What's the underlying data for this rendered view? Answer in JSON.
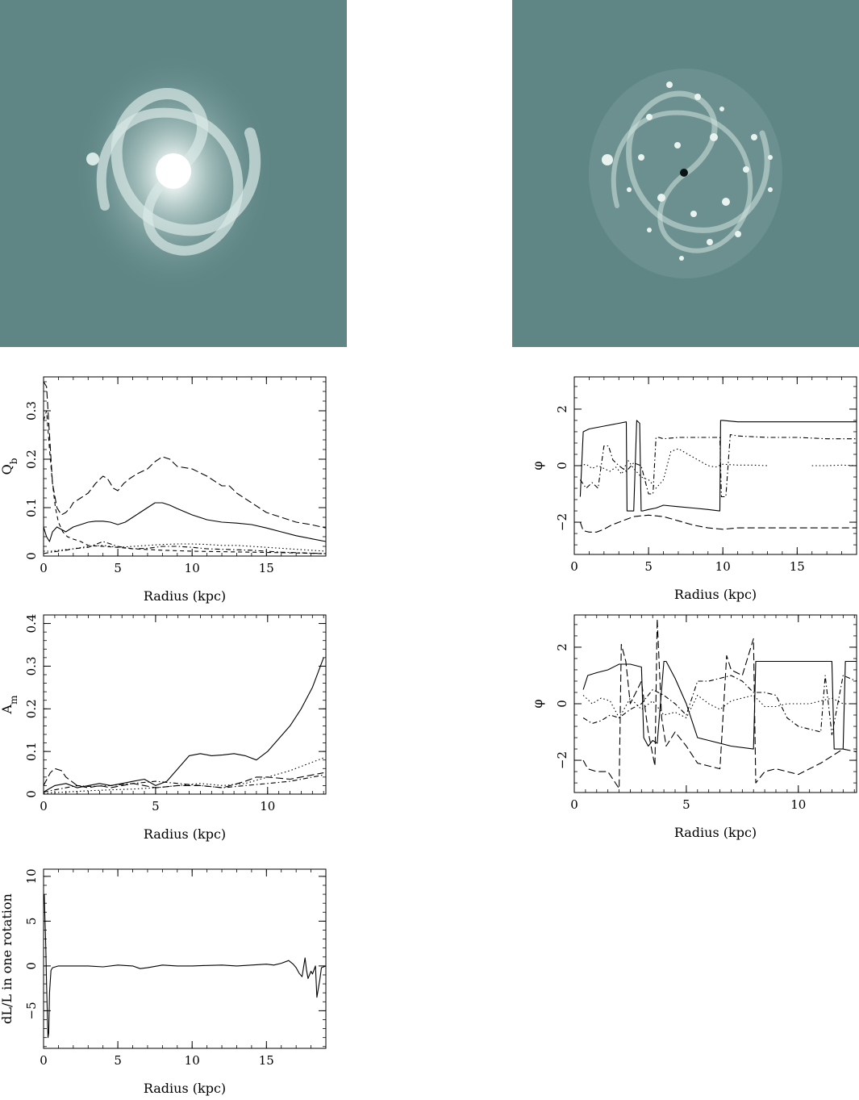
{
  "images": {
    "left": {
      "name": "galaxy-image-left"
    },
    "right": {
      "name": "galaxy-image-right"
    }
  },
  "chart_data": [
    {
      "id": "qb",
      "type": "line",
      "xlabel": "Radius (kpc)",
      "ylabel": "Q",
      "ylabel_sub": "b",
      "xlim": [
        0,
        19
      ],
      "ylim": [
        0,
        0.37
      ],
      "xticks": [
        0,
        5,
        10,
        15
      ],
      "yticks": [
        0,
        0.1,
        0.2,
        0.3
      ],
      "series": [
        {
          "style": "long-dash",
          "x": [
            0,
            0.2,
            0.4,
            0.6,
            0.9,
            1.2,
            1.5,
            1.8,
            2,
            2.5,
            3,
            3.5,
            4,
            4.3,
            4.7,
            5,
            5.4,
            5.8,
            6.3,
            7,
            7.5,
            8,
            8.5,
            9,
            10,
            11,
            12,
            12.5,
            13,
            14,
            15,
            16,
            17,
            18,
            19
          ],
          "y": [
            0.36,
            0.35,
            0.25,
            0.15,
            0.1,
            0.085,
            0.09,
            0.1,
            0.11,
            0.12,
            0.13,
            0.15,
            0.165,
            0.16,
            0.14,
            0.135,
            0.15,
            0.16,
            0.17,
            0.18,
            0.195,
            0.205,
            0.2,
            0.185,
            0.18,
            0.165,
            0.145,
            0.145,
            0.13,
            0.11,
            0.09,
            0.08,
            0.07,
            0.065,
            0.058
          ]
        },
        {
          "style": "solid",
          "x": [
            0,
            0.2,
            0.4,
            0.6,
            0.9,
            1.2,
            1.5,
            2,
            2.5,
            3,
            3.5,
            4,
            4.5,
            5,
            5.5,
            6,
            6.5,
            7,
            7.5,
            8,
            8.5,
            9,
            10,
            11,
            12,
            13,
            14,
            15,
            16,
            17,
            18,
            19
          ],
          "y": [
            0.06,
            0.04,
            0.03,
            0.05,
            0.06,
            0.055,
            0.05,
            0.06,
            0.065,
            0.07,
            0.072,
            0.072,
            0.07,
            0.065,
            0.07,
            0.08,
            0.09,
            0.1,
            0.11,
            0.11,
            0.105,
            0.098,
            0.085,
            0.075,
            0.07,
            0.068,
            0.065,
            0.058,
            0.05,
            0.042,
            0.036,
            0.03
          ]
        },
        {
          "style": "dash",
          "x": [
            0,
            0.2,
            0.4,
            0.6,
            0.8,
            1,
            1.3,
            1.6,
            2,
            2.5,
            3,
            4,
            5,
            6,
            8,
            10,
            12,
            14,
            16,
            19
          ],
          "y": [
            0.28,
            0.3,
            0.22,
            0.15,
            0.1,
            0.07,
            0.05,
            0.04,
            0.035,
            0.03,
            0.022,
            0.02,
            0.018,
            0.015,
            0.012,
            0.01,
            0.009,
            0.008,
            0.007,
            0.005
          ]
        },
        {
          "style": "dot",
          "x": [
            0,
            0.5,
            1,
            2,
            3,
            4,
            5,
            6,
            7,
            8,
            9,
            10,
            11,
            12,
            13,
            14,
            15,
            16,
            17,
            18,
            19
          ],
          "y": [
            0.01,
            0.01,
            0.012,
            0.015,
            0.02,
            0.022,
            0.018,
            0.02,
            0.022,
            0.024,
            0.025,
            0.025,
            0.024,
            0.022,
            0.022,
            0.02,
            0.018,
            0.016,
            0.014,
            0.012,
            0.01
          ]
        },
        {
          "style": "dash-dot",
          "x": [
            0,
            0.5,
            1,
            1.5,
            2,
            3,
            4,
            5,
            6,
            7,
            8,
            9,
            10,
            11,
            12,
            13,
            14,
            15,
            16,
            17,
            18,
            19
          ],
          "y": [
            0.005,
            0.008,
            0.01,
            0.012,
            0.015,
            0.018,
            0.03,
            0.02,
            0.015,
            0.016,
            0.02,
            0.02,
            0.018,
            0.015,
            0.014,
            0.013,
            0.012,
            0.01,
            0.008,
            0.007,
            0.006,
            0.005
          ]
        }
      ]
    },
    {
      "id": "phi-top",
      "type": "line",
      "xlabel": "Radius (kpc)",
      "ylabel": "φ",
      "xlim": [
        0,
        19
      ],
      "ylim": [
        -3.14,
        3.14
      ],
      "xticks": [
        0,
        5,
        10,
        15
      ],
      "yticks": [
        -2,
        0,
        2
      ],
      "series": [
        {
          "style": "solid",
          "x": [
            0.4,
            0.6,
            1,
            2,
            3,
            3.5,
            3.55,
            4,
            4.2,
            4.4,
            4.5,
            4.6,
            5,
            5.5,
            6,
            7,
            8,
            9,
            9.8,
            9.85,
            10,
            11,
            13,
            15,
            17,
            19
          ],
          "y": [
            -1.1,
            1.2,
            1.3,
            1.4,
            1.5,
            1.55,
            -1.6,
            -1.6,
            1.6,
            1.5,
            -1.6,
            -1.6,
            -1.55,
            -1.5,
            -1.4,
            -1.45,
            -1.5,
            -1.55,
            -1.6,
            1.6,
            1.6,
            1.55,
            1.55,
            1.55,
            1.55,
            1.55
          ]
        },
        {
          "style": "long-dash",
          "x": [
            0.4,
            0.6,
            1,
            1.5,
            2,
            2.5,
            3,
            4,
            5,
            6,
            7,
            8,
            9,
            10,
            11,
            13,
            15,
            17,
            19
          ],
          "y": [
            -2.0,
            -2.3,
            -2.35,
            -2.35,
            -2.25,
            -2.1,
            -2.0,
            -1.8,
            -1.75,
            -1.8,
            -1.95,
            -2.1,
            -2.2,
            -2.25,
            -2.2,
            -2.2,
            -2.2,
            -2.2,
            -2.2
          ]
        },
        {
          "style": "dash-dot",
          "x": [
            0.4,
            0.8,
            1.2,
            1.6,
            2,
            2.3,
            2.6,
            3,
            3.5,
            4,
            4.5,
            5,
            5.3,
            5.5,
            5.7,
            6,
            7,
            8,
            9,
            9.8,
            9.9,
            10.2,
            10.5,
            11,
            13,
            15,
            17,
            19
          ],
          "y": [
            -0.5,
            -0.8,
            -0.6,
            -0.8,
            0.7,
            0.7,
            0.2,
            0.0,
            -0.2,
            0.1,
            0.0,
            -1.0,
            -1.0,
            1.0,
            1.0,
            0.95,
            1.0,
            1.0,
            1.0,
            1.0,
            -1.1,
            -1.1,
            1.1,
            1.05,
            1.0,
            1.0,
            0.95,
            0.95
          ]
        },
        {
          "style": "dot",
          "x": [
            0.4,
            0.8,
            1.2,
            1.6,
            2,
            2.4,
            2.8,
            3.2,
            3.6,
            4,
            4.5,
            5,
            5.5,
            6,
            6.5,
            7,
            8,
            9,
            9.5,
            10,
            11,
            12,
            13,
            15,
            16,
            17,
            18,
            19
          ],
          "y": [
            0.0,
            0.05,
            -0.1,
            0.0,
            -0.1,
            -0.2,
            -0.05,
            -0.3,
            0.2,
            -0.1,
            -0.4,
            -0.5,
            -0.8,
            -0.5,
            0.5,
            0.6,
            0.3,
            0.0,
            -0.05,
            0.05,
            0.02,
            0.02,
            0.0,
            null,
            0.0,
            0.0,
            0.02,
            0.0
          ]
        }
      ]
    },
    {
      "id": "an",
      "type": "line",
      "xlabel": "Radius (kpc)",
      "ylabel": "A",
      "ylabel_sub": "m",
      "xlim": [
        0,
        12.6
      ],
      "ylim": [
        0,
        0.42
      ],
      "xticks": [
        0,
        5,
        10
      ],
      "yticks": [
        0,
        0.1,
        0.2,
        0.3,
        0.4
      ],
      "series": [
        {
          "style": "solid",
          "x": [
            0,
            0.5,
            1,
            1.5,
            2,
            2.5,
            3,
            3.5,
            4,
            4.5,
            5,
            5.5,
            6,
            6.5,
            7,
            7.5,
            8,
            8.5,
            9,
            9.5,
            10,
            10.5,
            11,
            11.5,
            12,
            12.5
          ],
          "y": [
            0.005,
            0.02,
            0.025,
            0.015,
            0.02,
            0.025,
            0.02,
            0.025,
            0.03,
            0.035,
            0.02,
            0.03,
            0.06,
            0.09,
            0.095,
            0.09,
            0.092,
            0.095,
            0.09,
            0.08,
            0.1,
            0.13,
            0.16,
            0.2,
            0.25,
            0.32
          ]
        },
        {
          "style": "long-dash",
          "x": [
            0,
            0.3,
            0.5,
            0.8,
            1,
            1.5,
            2,
            2.5,
            3,
            3.5,
            4,
            4.5,
            5,
            6,
            7,
            8,
            9,
            9.5,
            10,
            11,
            12,
            12.5
          ],
          "y": [
            0.02,
            0.05,
            0.06,
            0.055,
            0.04,
            0.02,
            0.015,
            0.02,
            0.015,
            0.02,
            0.025,
            0.02,
            0.015,
            0.02,
            0.02,
            0.015,
            0.03,
            0.04,
            0.04,
            0.035,
            0.045,
            0.05
          ]
        },
        {
          "style": "dash-dot",
          "x": [
            0,
            0.5,
            1,
            1.5,
            2,
            3,
            4,
            5,
            6,
            7,
            8,
            9,
            10,
            11,
            12,
            12.5
          ],
          "y": [
            0.005,
            0.01,
            0.015,
            0.02,
            0.018,
            0.02,
            0.025,
            0.03,
            0.025,
            0.02,
            0.015,
            0.02,
            0.025,
            0.03,
            0.04,
            0.045
          ]
        },
        {
          "style": "dot",
          "x": [
            0,
            1,
            2,
            3,
            4,
            5,
            6,
            7,
            8,
            9,
            10,
            11,
            12,
            12.5
          ],
          "y": [
            0.002,
            0.005,
            0.008,
            0.01,
            0.012,
            0.015,
            0.02,
            0.025,
            0.02,
            0.025,
            0.04,
            0.055,
            0.075,
            0.085
          ]
        }
      ]
    },
    {
      "id": "phi-bottom",
      "type": "line",
      "xlabel": "Radius (kpc)",
      "ylabel": "φ",
      "xlim": [
        0,
        12.6
      ],
      "ylim": [
        -3.14,
        3.14
      ],
      "xticks": [
        0,
        5,
        10
      ],
      "yticks": [
        -2,
        0,
        2
      ],
      "series": [
        {
          "style": "solid",
          "x": [
            0.4,
            0.6,
            1,
            1.5,
            2,
            2.5,
            3,
            3.1,
            3.3,
            3.5,
            3.7,
            4,
            4.1,
            4.5,
            5,
            5.5,
            6,
            7,
            8,
            8.1,
            8.5,
            9,
            10,
            11,
            11.5,
            11.6,
            11.8,
            12,
            12.1,
            12.6
          ],
          "y": [
            0.5,
            1.0,
            1.1,
            1.2,
            1.4,
            1.4,
            1.3,
            -1.2,
            -1.5,
            -1.3,
            -1.4,
            1.5,
            1.5,
            0.9,
            0.0,
            -1.2,
            -1.3,
            -1.5,
            -1.6,
            1.5,
            1.5,
            1.5,
            1.5,
            1.5,
            1.5,
            -1.6,
            -1.6,
            -1.6,
            1.5,
            1.5
          ]
        },
        {
          "style": "long-dash",
          "x": [
            0.4,
            0.6,
            1,
            1.5,
            2,
            2.1,
            2.3,
            2.5,
            3,
            3.3,
            3.6,
            3.7,
            3.9,
            4.1,
            4.5,
            5,
            5.5,
            6,
            6.5,
            6.8,
            7,
            7.5,
            8,
            8.1,
            8.5,
            9,
            10,
            11,
            12,
            12.6
          ],
          "y": [
            -2.0,
            -2.3,
            -2.4,
            -2.4,
            -3.0,
            2.1,
            1.5,
            0.0,
            0.8,
            -1.0,
            -2.2,
            3.0,
            -0.5,
            -1.5,
            -1.0,
            -1.5,
            -2.1,
            -2.2,
            -2.3,
            1.7,
            1.2,
            1.0,
            2.3,
            -2.8,
            -2.4,
            -2.3,
            -2.5,
            -2.1,
            -1.6,
            -1.7
          ]
        },
        {
          "style": "dash-dot",
          "x": [
            0.4,
            0.8,
            1.2,
            1.6,
            2,
            2.5,
            3,
            3.5,
            4,
            4.5,
            5,
            5.5,
            6,
            6.5,
            7,
            7.5,
            8,
            8.5,
            9,
            9.5,
            10,
            10.5,
            11,
            11.2,
            11.5,
            12,
            12.6
          ],
          "y": [
            -0.5,
            -0.7,
            -0.6,
            -0.4,
            -0.5,
            -0.2,
            0.0,
            0.5,
            0.3,
            0.0,
            -0.4,
            0.8,
            0.8,
            0.9,
            1.0,
            0.8,
            0.4,
            0.4,
            0.3,
            -0.5,
            -0.8,
            -0.9,
            -1.0,
            1.0,
            -1.1,
            1.0,
            0.8
          ]
        },
        {
          "style": "dot",
          "x": [
            0.4,
            0.8,
            1.2,
            1.6,
            2,
            2.5,
            3,
            3.5,
            4,
            4.5,
            5,
            5.5,
            6,
            6.5,
            7,
            7.5,
            8,
            8.5,
            9,
            9.5,
            10,
            10.5,
            11,
            11.5,
            12,
            12.6
          ],
          "y": [
            0.3,
            0.0,
            0.2,
            0.1,
            -0.5,
            0.2,
            -0.2,
            0.1,
            -0.4,
            -0.3,
            -0.5,
            0.3,
            0.0,
            -0.2,
            0.1,
            0.2,
            0.3,
            -0.1,
            -0.1,
            0.0,
            0.0,
            0.0,
            0.1,
            0.2,
            0.0,
            0.0
          ]
        }
      ]
    },
    {
      "id": "dl",
      "type": "line",
      "xlabel": "Radius (kpc)",
      "ylabel": "dL/L in one rotation",
      "xlim": [
        0,
        19
      ],
      "ylim": [
        -9.2,
        10.8
      ],
      "xticks": [
        0,
        5,
        10,
        15
      ],
      "yticks": [
        -5,
        0,
        5,
        10
      ],
      "series": [
        {
          "style": "solid",
          "x": [
            0.05,
            0.1,
            0.15,
            0.2,
            0.3,
            0.35,
            0.4,
            0.5,
            0.6,
            0.8,
            1,
            2,
            3,
            4,
            5,
            6,
            6.5,
            7,
            8,
            9,
            10,
            11,
            12,
            13,
            14,
            15,
            15.5,
            16,
            16.5,
            16.8,
            17,
            17.2,
            17.4,
            17.6,
            17.7,
            17.8,
            18,
            18.1,
            18.3,
            18.4,
            18.6,
            18.7,
            19
          ],
          "y": [
            8.0,
            5.0,
            2.0,
            -2.0,
            -8.0,
            -7.5,
            -3.0,
            -0.5,
            -0.2,
            -0.1,
            0.0,
            0.0,
            0.0,
            -0.1,
            0.1,
            0.0,
            -0.3,
            -0.2,
            0.1,
            0.0,
            0.0,
            0.05,
            0.1,
            0.0,
            0.1,
            0.2,
            0.1,
            0.3,
            0.6,
            0.2,
            -0.2,
            -0.8,
            -1.2,
            0.9,
            -0.5,
            -1.4,
            -0.6,
            -0.9,
            0.0,
            -3.5,
            -1.5,
            -0.2,
            0.0
          ]
        }
      ]
    }
  ]
}
